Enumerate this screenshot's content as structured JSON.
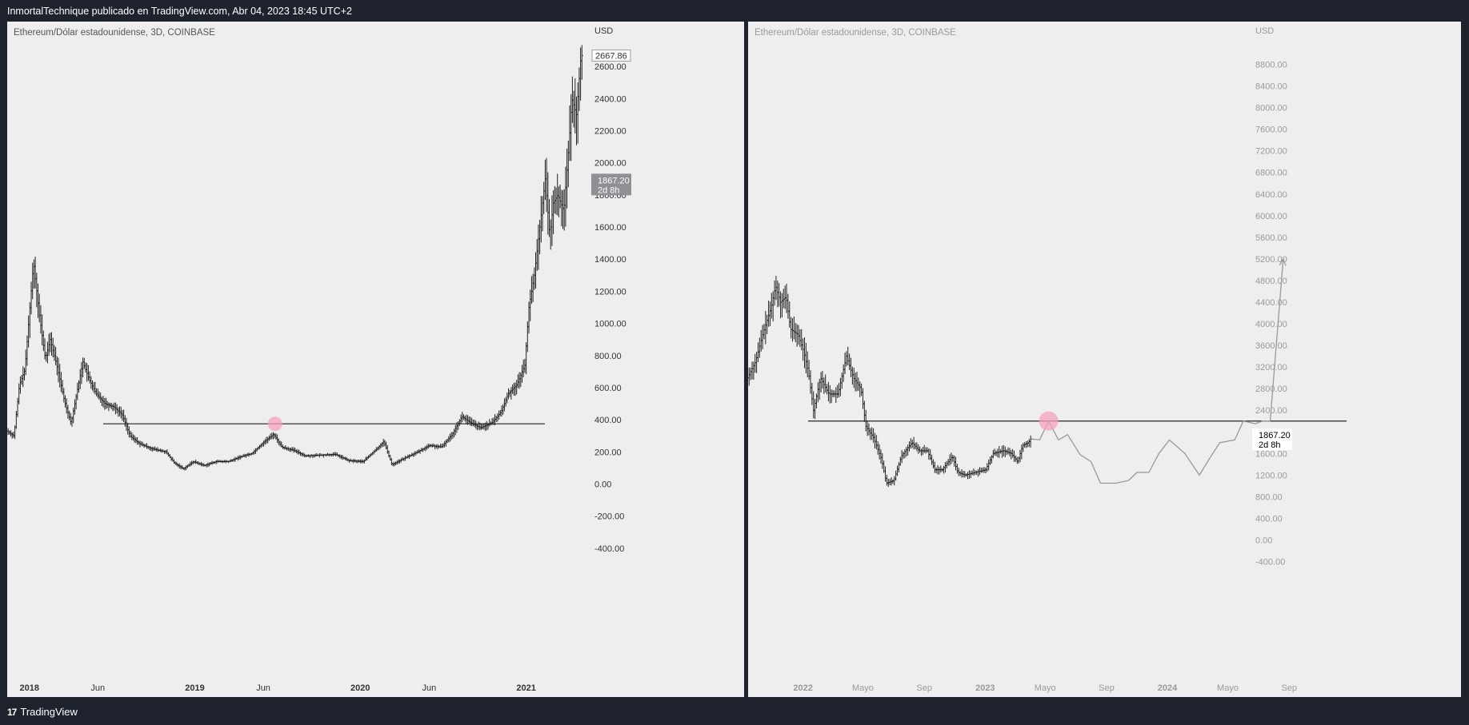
{
  "header": {
    "text": "InmortalTechnique publicado en TradingView.com, Abr 04, 2023 18:45 UTC+2"
  },
  "footer": {
    "brand": "TradingView",
    "brand_mark": "17"
  },
  "colors": {
    "background": "#1e222d",
    "pane": "#eeeeee",
    "candles": "#222222",
    "projection": "#999999",
    "highlight": "#f4a0c0",
    "price_badge": "#8f8f94"
  },
  "chart_data": [
    {
      "type": "candlestick",
      "symbol": "Ethereum/Dólar estadounidense, 3D, COINBASE",
      "currency": "USD",
      "x_ticks": [
        "2018",
        "Jun",
        "2019",
        "Jun",
        "2020",
        "Jun",
        "2021"
      ],
      "y_ticks": [
        "-400.00",
        "-200.00",
        "0.00",
        "200.00",
        "400.00",
        "600.00",
        "800.00",
        "1000.00",
        "1200.00",
        "1400.00",
        "1600.00",
        "1800.00",
        "2000.00",
        "2200.00",
        "2400.00",
        "2600.00"
      ],
      "ylim": [
        -480,
        2680
      ],
      "last_price": "2667.86",
      "current_price": "1867.20",
      "countdown": "2d 8h",
      "support_level": 375,
      "highlight": {
        "date": "2019-06-27",
        "value": 375
      },
      "series": [
        {
          "values": [
            [
              "2017-11-15",
              330
            ],
            [
              "2017-12-01",
              300
            ],
            [
              "2017-12-13",
              620
            ],
            [
              "2017-12-25",
              710
            ],
            [
              "2018-01-13",
              1380
            ],
            [
              "2018-01-26",
              1050
            ],
            [
              "2018-02-08",
              780
            ],
            [
              "2018-02-19",
              900
            ],
            [
              "2018-03-07",
              720
            ],
            [
              "2018-03-22",
              520
            ],
            [
              "2018-04-06",
              380
            ],
            [
              "2018-04-18",
              560
            ],
            [
              "2018-05-02",
              760
            ],
            [
              "2018-05-16",
              650
            ],
            [
              "2018-06-01",
              560
            ],
            [
              "2018-06-20",
              500
            ],
            [
              "2018-07-10",
              480
            ],
            [
              "2018-07-28",
              430
            ],
            [
              "2018-08-14",
              300
            ],
            [
              "2018-09-05",
              250
            ],
            [
              "2018-10-01",
              220
            ],
            [
              "2018-11-01",
              200
            ],
            [
              "2018-11-20",
              130
            ],
            [
              "2018-12-10",
              95
            ],
            [
              "2019-01-01",
              140
            ],
            [
              "2019-01-25",
              115
            ],
            [
              "2019-02-20",
              140
            ],
            [
              "2019-03-20",
              140
            ],
            [
              "2019-04-15",
              170
            ],
            [
              "2019-05-10",
              190
            ],
            [
              "2019-06-05",
              260
            ],
            [
              "2019-06-27",
              310
            ],
            [
              "2019-07-15",
              230
            ],
            [
              "2019-08-10",
              210
            ],
            [
              "2019-09-05",
              175
            ],
            [
              "2019-10-10",
              180
            ],
            [
              "2019-11-10",
              185
            ],
            [
              "2019-12-10",
              145
            ],
            [
              "2020-01-10",
              140
            ],
            [
              "2020-02-10",
              220
            ],
            [
              "2020-02-25",
              265
            ],
            [
              "2020-03-14",
              120
            ],
            [
              "2020-04-10",
              160
            ],
            [
              "2020-05-10",
              200
            ],
            [
              "2020-06-05",
              240
            ],
            [
              "2020-07-01",
              230
            ],
            [
              "2020-07-25",
              310
            ],
            [
              "2020-08-15",
              420
            ],
            [
              "2020-09-05",
              380
            ],
            [
              "2020-09-25",
              350
            ],
            [
              "2020-10-20",
              380
            ],
            [
              "2020-11-10",
              450
            ],
            [
              "2020-11-25",
              560
            ],
            [
              "2020-12-15",
              620
            ],
            [
              "2021-01-01",
              740
            ],
            [
              "2021-01-10",
              1100
            ],
            [
              "2021-01-22",
              1300
            ],
            [
              "2021-02-05",
              1650
            ],
            [
              "2021-02-15",
              1900
            ],
            [
              "2021-02-25",
              1550
            ],
            [
              "2021-03-05",
              1750
            ],
            [
              "2021-03-15",
              1800
            ],
            [
              "2021-03-28",
              1700
            ],
            [
              "2021-04-08",
              2100
            ],
            [
              "2021-04-15",
              2400
            ],
            [
              "2021-04-25",
              2300
            ],
            [
              "2021-05-03",
              2600
            ],
            [
              "2021-05-05",
              2667.86
            ]
          ]
        }
      ]
    },
    {
      "type": "candlestick",
      "symbol": "Ethereum/Dólar estadounidense, 3D, COINBASE",
      "currency": "USD",
      "x_ticks": [
        "2022",
        "Mayo",
        "Sep",
        "2023",
        "Mayo",
        "Sep",
        "2024",
        "Mayo",
        "Sep"
      ],
      "y_ticks": [
        "-400.00",
        "0.00",
        "400.00",
        "800.00",
        "1200.00",
        "1600.00",
        "2000.00",
        "2400.00",
        "2800.00",
        "3200.00",
        "3600.00",
        "4000.00",
        "4400.00",
        "4800.00",
        "5200.00",
        "5600.00",
        "6000.00",
        "6400.00",
        "6800.00",
        "7200.00",
        "7600.00",
        "8000.00",
        "8400.00",
        "8800.00"
      ],
      "ylim": [
        -540,
        9000
      ],
      "current_price": "1867.20",
      "countdown": "2d 8h",
      "support_level": 2200,
      "highlight": {
        "date": "2023-05-08",
        "value": 2200
      },
      "series": [
        {
          "name": "",
          "values": [
            [
              "2021-09-15",
              3000
            ],
            [
              "2021-10-01",
              3300
            ],
            [
              "2021-10-15",
              3800
            ],
            [
              "2021-11-01",
              4300
            ],
            [
              "2021-11-10",
              4700
            ],
            [
              "2021-11-20",
              4400
            ],
            [
              "2021-12-01",
              4500
            ],
            [
              "2021-12-10",
              3900
            ],
            [
              "2021-12-25",
              3800
            ],
            [
              "2022-01-05",
              3500
            ],
            [
              "2022-01-15",
              3100
            ],
            [
              "2022-01-25",
              2400
            ],
            [
              "2022-02-08",
              3000
            ],
            [
              "2022-02-25",
              2700
            ],
            [
              "2022-03-15",
              2700
            ],
            [
              "2022-04-01",
              3400
            ],
            [
              "2022-04-15",
              3000
            ],
            [
              "2022-04-30",
              2800
            ],
            [
              "2022-05-10",
              2100
            ],
            [
              "2022-05-25",
              1900
            ],
            [
              "2022-06-10",
              1500
            ],
            [
              "2022-06-20",
              1050
            ],
            [
              "2022-07-05",
              1100
            ],
            [
              "2022-07-20",
              1550
            ],
            [
              "2022-08-10",
              1800
            ],
            [
              "2022-08-25",
              1650
            ],
            [
              "2022-09-10",
              1650
            ],
            [
              "2022-09-25",
              1300
            ],
            [
              "2022-10-10",
              1300
            ],
            [
              "2022-10-30",
              1550
            ],
            [
              "2022-11-10",
              1250
            ],
            [
              "2022-11-25",
              1200
            ],
            [
              "2022-12-15",
              1250
            ],
            [
              "2023-01-05",
              1300
            ],
            [
              "2023-01-20",
              1600
            ],
            [
              "2023-02-10",
              1650
            ],
            [
              "2023-02-25",
              1600
            ],
            [
              "2023-03-10",
              1450
            ],
            [
              "2023-03-20",
              1750
            ],
            [
              "2023-04-01",
              1800
            ],
            [
              "2023-04-04",
              1867.2
            ]
          ]
        },
        {
          "name": "",
          "projection": true,
          "values": [
            [
              "2023-04-04",
              1867.2
            ],
            [
              "2023-04-20",
              1850
            ],
            [
              "2023-05-08",
              2200
            ],
            [
              "2023-05-28",
              1850
            ],
            [
              "2023-06-15",
              1950
            ],
            [
              "2023-07-10",
              1580
            ],
            [
              "2023-08-01",
              1450
            ],
            [
              "2023-08-20",
              1050
            ],
            [
              "2023-09-20",
              1050
            ],
            [
              "2023-10-15",
              1100
            ],
            [
              "2023-11-01",
              1250
            ],
            [
              "2023-11-25",
              1250
            ],
            [
              "2023-12-15",
              1600
            ],
            [
              "2024-01-05",
              1850
            ],
            [
              "2024-02-05",
              1600
            ],
            [
              "2024-03-05",
              1200
            ],
            [
              "2024-03-25",
              1500
            ],
            [
              "2024-04-15",
              1800
            ],
            [
              "2024-05-15",
              1850
            ],
            [
              "2024-06-01",
              2200
            ],
            [
              "2024-06-25",
              2150
            ],
            [
              "2024-07-10",
              2200
            ],
            [
              "2024-07-25",
              2200
            ],
            [
              "2024-08-20",
              5200
            ]
          ]
        }
      ]
    }
  ]
}
